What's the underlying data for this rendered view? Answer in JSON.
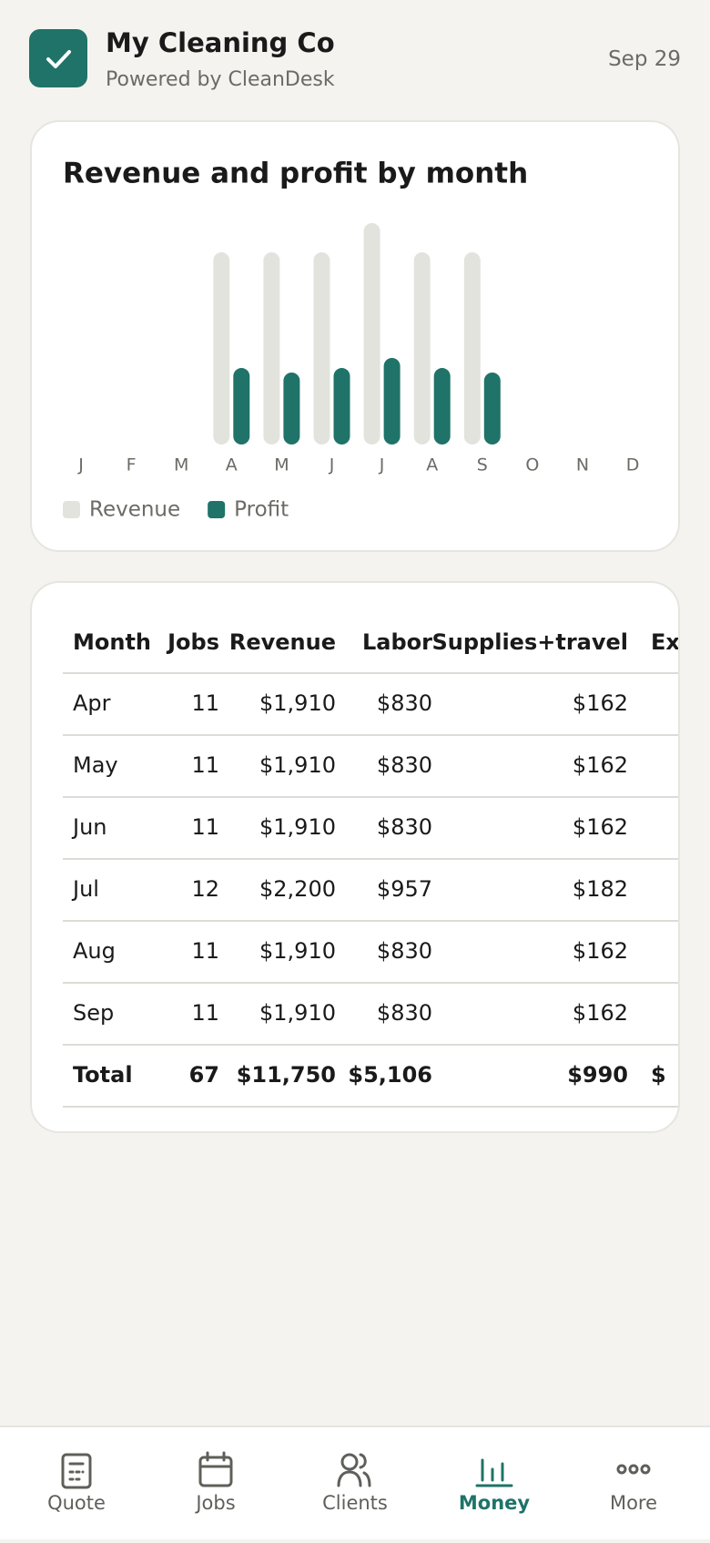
{
  "header": {
    "title": "My Cleaning Co",
    "subtitle": "Powered by CleanDesk",
    "date": "Sep 29"
  },
  "chart_data": {
    "type": "bar",
    "title": "Revenue and profit by month",
    "categories": [
      "J",
      "F",
      "M",
      "A",
      "M",
      "J",
      "J",
      "A",
      "S",
      "O",
      "N",
      "D"
    ],
    "series": [
      {
        "name": "Revenue",
        "color": "#e3e3de",
        "values": [
          null,
          null,
          null,
          1910,
          1910,
          1910,
          2200,
          1910,
          1910,
          null,
          null,
          null
        ]
      },
      {
        "name": "Profit",
        "color": "#1f7368",
        "values": [
          null,
          null,
          null,
          760,
          715,
          760,
          860,
          760,
          715,
          null,
          null,
          null
        ]
      }
    ]
  },
  "table": {
    "columns": [
      "Month",
      "Jobs",
      "Revenue",
      "Labor",
      "Supplies+travel",
      "Exp"
    ],
    "rows": [
      [
        "Apr",
        "11",
        "$1,910",
        "$830",
        "$162",
        ""
      ],
      [
        "May",
        "11",
        "$1,910",
        "$830",
        "$162",
        ""
      ],
      [
        "Jun",
        "11",
        "$1,910",
        "$830",
        "$162",
        ""
      ],
      [
        "Jul",
        "12",
        "$2,200",
        "$957",
        "$182",
        ""
      ],
      [
        "Aug",
        "11",
        "$1,910",
        "$830",
        "$162",
        ""
      ],
      [
        "Sep",
        "11",
        "$1,910",
        "$830",
        "$162",
        ""
      ]
    ],
    "total": [
      "Total",
      "67",
      "$11,750",
      "$5,106",
      "$990",
      "$"
    ]
  },
  "nav": [
    "Quote",
    "Jobs",
    "Clients",
    "Money",
    "More"
  ]
}
